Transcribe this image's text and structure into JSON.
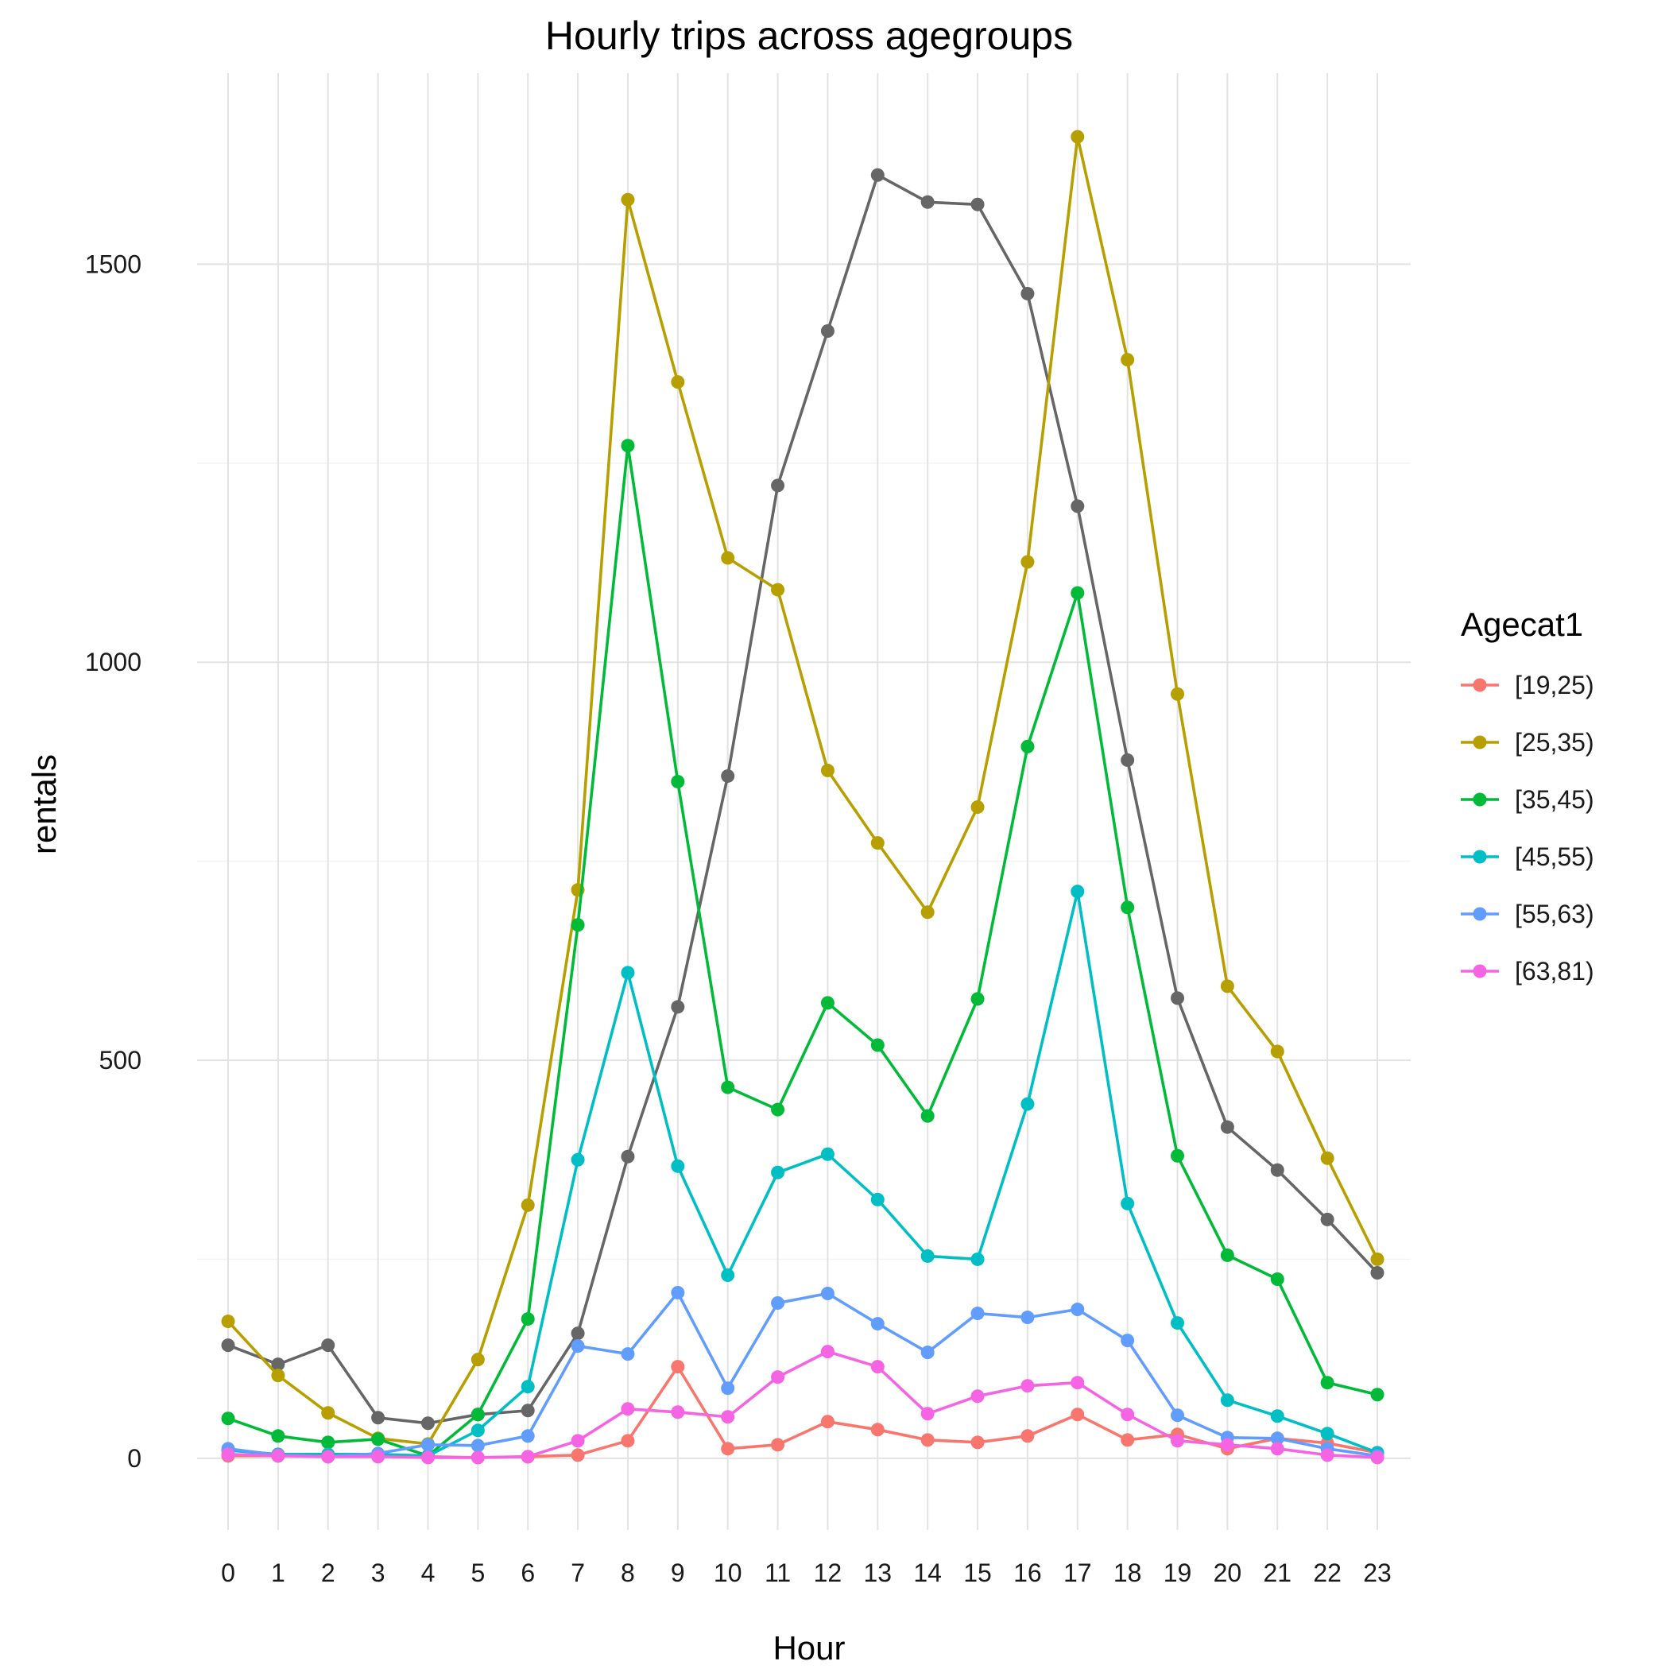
{
  "chart_data": {
    "type": "line",
    "title": "Hourly trips across agegroups",
    "xlabel": "Hour",
    "ylabel": "rentals",
    "categories": [
      "0",
      "1",
      "2",
      "3",
      "4",
      "5",
      "6",
      "7",
      "8",
      "9",
      "10",
      "11",
      "12",
      "13",
      "14",
      "15",
      "16",
      "17",
      "18",
      "19",
      "20",
      "21",
      "22",
      "23"
    ],
    "ylim": [
      -90,
      1740
    ],
    "yticks": [
      0,
      500,
      1000,
      1500
    ],
    "grid": true,
    "legend": {
      "title": "Agecat1",
      "placement": "right"
    },
    "series": [
      {
        "name": "[19,25)",
        "color": "#F8766D",
        "values": [
          3,
          3,
          3,
          3,
          2,
          1,
          2,
          4,
          22,
          115,
          12,
          17,
          46,
          36,
          23,
          20,
          28,
          55,
          23,
          30,
          12,
          25,
          19,
          7
        ]
      },
      {
        "name": "[25,35)",
        "color": "#B79F00",
        "values": [
          172,
          104,
          57,
          25,
          18,
          124,
          318,
          714,
          1581,
          1352,
          1131,
          1091,
          864,
          773,
          686,
          818,
          1126,
          1660,
          1380,
          960,
          593,
          511,
          377,
          250
        ]
      },
      {
        "name": "[35,45)",
        "color": "#00BA38",
        "values": [
          50,
          28,
          20,
          24,
          3,
          55,
          175,
          670,
          1272,
          850,
          466,
          438,
          572,
          519,
          430,
          577,
          894,
          1087,
          692,
          380,
          255,
          225,
          95,
          80
        ]
      },
      {
        "name": "[45,55)",
        "color": "#00BFC4",
        "values": [
          10,
          5,
          5,
          5,
          3,
          35,
          90,
          375,
          610,
          367,
          230,
          359,
          382,
          325,
          254,
          250,
          445,
          712,
          320,
          170,
          73,
          53,
          31,
          7
        ]
      },
      {
        "name": "[55,63)",
        "color": "#619CFF",
        "values": [
          12,
          4,
          2,
          6,
          17,
          16,
          28,
          141,
          131,
          208,
          88,
          195,
          207,
          169,
          133,
          182,
          177,
          187,
          148,
          54,
          26,
          25,
          12,
          3
        ]
      },
      {
        "name": "[63,81)",
        "color": "#F564E3",
        "values": [
          5,
          3,
          2,
          2,
          1,
          1,
          2,
          22,
          62,
          58,
          52,
          102,
          134,
          115,
          56,
          78,
          91,
          95,
          55,
          22,
          17,
          12,
          4,
          1
        ]
      },
      {
        "name": "",
        "color": "#666666",
        "values": [
          142,
          118,
          142,
          51,
          44,
          55,
          60,
          157,
          379,
          567,
          857,
          1222,
          1416,
          1612,
          1578,
          1575,
          1463,
          1196,
          877,
          578,
          416,
          362,
          300,
          233
        ]
      }
    ]
  }
}
